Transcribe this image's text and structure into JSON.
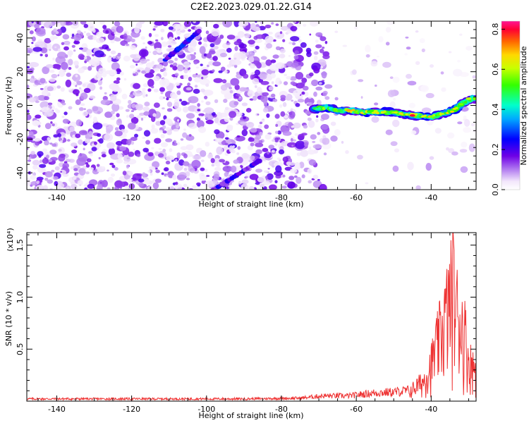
{
  "title": "C2E2.2023.029.01.22.G14",
  "chart_data": [
    {
      "type": "heatmap",
      "xlabel": "Height of straight line (km)",
      "ylabel": "Frequency (Hz)",
      "xlim": [
        -148,
        -28
      ],
      "ylim": [
        -50,
        50
      ],
      "xticks": [
        -140,
        -120,
        -100,
        -80,
        -60,
        -40
      ],
      "yticks": [
        -40,
        -20,
        0,
        20,
        40
      ],
      "colorbar": {
        "label": "Normalized spectral amplitude",
        "range": [
          0.0,
          0.84
        ],
        "ticks": [
          0.0,
          0.2,
          0.4,
          0.6,
          0.8
        ],
        "colormap": "rainbow"
      },
      "ridge": [
        {
          "x": -71,
          "y": -2
        },
        {
          "x": -68,
          "y": -1
        },
        {
          "x": -65,
          "y": -3
        },
        {
          "x": -62,
          "y": -3
        },
        {
          "x": -58,
          "y": -4
        },
        {
          "x": -55,
          "y": -4
        },
        {
          "x": -51,
          "y": -4
        },
        {
          "x": -48,
          "y": -5
        },
        {
          "x": -44,
          "y": -6
        },
        {
          "x": -40,
          "y": -7
        },
        {
          "x": -37,
          "y": -5
        },
        {
          "x": -34,
          "y": -3
        },
        {
          "x": -32,
          "y": 1
        },
        {
          "x": -29,
          "y": 4
        }
      ],
      "ridge_peaks": [
        {
          "x": -62,
          "y": -3,
          "v": 0.7
        },
        {
          "x": -45,
          "y": -6,
          "v": 0.8
        },
        {
          "x": -30,
          "y": 4,
          "v": 0.6
        }
      ],
      "streaks": [
        {
          "x1": -111,
          "y1": 27,
          "x2": -102,
          "y2": 44,
          "v": 0.25
        },
        {
          "x1": -98,
          "y1": -50,
          "x2": -86,
          "y2": -33,
          "v": 0.2
        }
      ]
    },
    {
      "type": "line",
      "xlabel": "Height of straight line (km)",
      "ylabel": "SNR (10 * v/v)",
      "multiplier_label": "(x10⁴)",
      "xlim": [
        -148,
        -28
      ],
      "ylim": [
        0,
        1.62
      ],
      "xticks": [
        -140,
        -120,
        -100,
        -80,
        -60,
        -40
      ],
      "yticks": [
        0.5,
        1.0,
        1.5
      ],
      "yticklabels": [
        "0.5",
        "1.0",
        "1.5"
      ],
      "color": "#ee3333",
      "envelope": [
        {
          "x": -148,
          "y": 0.03
        },
        {
          "x": -120,
          "y": 0.03
        },
        {
          "x": -90,
          "y": 0.03
        },
        {
          "x": -75,
          "y": 0.04
        },
        {
          "x": -69,
          "y": 0.07
        },
        {
          "x": -62,
          "y": 0.07
        },
        {
          "x": -55,
          "y": 0.11
        },
        {
          "x": -50,
          "y": 0.12
        },
        {
          "x": -46,
          "y": 0.14
        },
        {
          "x": -44,
          "y": 0.22
        },
        {
          "x": -42,
          "y": 0.3
        },
        {
          "x": -40,
          "y": 0.55
        },
        {
          "x": -38,
          "y": 0.9
        },
        {
          "x": -36,
          "y": 1.27
        },
        {
          "x": -34.2,
          "y": 1.63
        },
        {
          "x": -33,
          "y": 1.3
        },
        {
          "x": -31,
          "y": 1.0
        },
        {
          "x": -30,
          "y": 0.6
        },
        {
          "x": -28,
          "y": 0.45
        }
      ]
    }
  ]
}
